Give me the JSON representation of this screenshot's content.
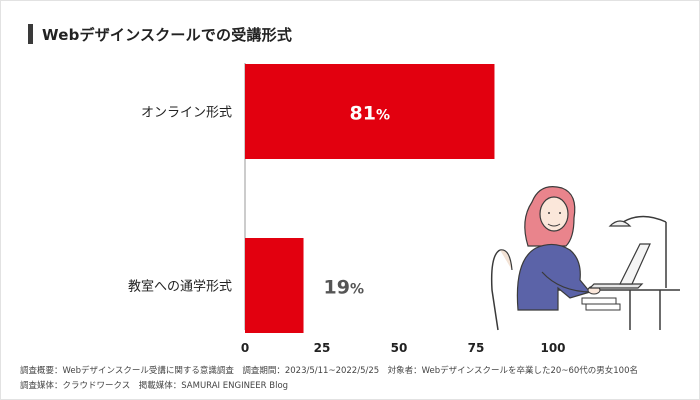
{
  "title": "Webデザインスクールでの受講形式",
  "colors": {
    "bar": "#e2000f",
    "label_inside": "#ffffff",
    "label_outside": "#555555",
    "axis": "#999999"
  },
  "chart_data": {
    "type": "bar",
    "orientation": "horizontal",
    "title": "Webデザインスクールでの受講形式",
    "categories": [
      "オンライン形式",
      "教室への通学形式"
    ],
    "values": [
      81,
      19
    ],
    "value_labels": [
      "81",
      "19"
    ],
    "value_suffix": "%",
    "xlim": [
      0,
      100
    ],
    "x_ticks": [
      "0",
      "25",
      "50",
      "75",
      "100"
    ],
    "grid": false,
    "legend": "none"
  },
  "footer": {
    "line1": "調査概要：Webデザインスクール受講に関する意識調査　調査期間：2023/5/11~2022/5/25　対象者：Webデザインスクールを卒業した20~60代の男女100名",
    "line2": "調査媒体：クラウドワークス　掲載媒体：SAMURAI ENGINEER Blog"
  },
  "illustration": {
    "icon": "woman-working-on-laptop-icon"
  }
}
